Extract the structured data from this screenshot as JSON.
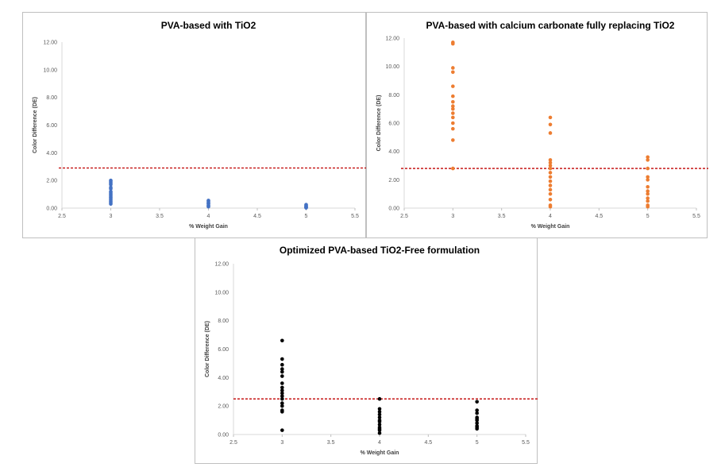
{
  "chart_data": [
    {
      "type": "scatter",
      "title": "PVA-based with TiO2",
      "xlabel": "% Weight Gain",
      "ylabel": "Color Difference (DE)",
      "xlim": [
        2.5,
        5.5
      ],
      "ylim": [
        0,
        12
      ],
      "xticks": [
        "2.5",
        "3",
        "3.5",
        "4",
        "4.5",
        "5",
        "5.5"
      ],
      "yticks": [
        "0.00",
        "2.00",
        "4.00",
        "6.00",
        "8.00",
        "10.00",
        "12.00"
      ],
      "marker_color": "#4472c4",
      "reference_line": {
        "y": 2.9,
        "color": "#c00000",
        "style": "dashed"
      },
      "series": [
        {
          "x": [
            3,
            3,
            3,
            3,
            3,
            3,
            3,
            3,
            3,
            3,
            3,
            3,
            3,
            3,
            3,
            3,
            4,
            4,
            4,
            4,
            4,
            4,
            4,
            4,
            5,
            5,
            5,
            5,
            5,
            5,
            5
          ],
          "y": [
            0.3,
            0.4,
            0.5,
            0.6,
            0.7,
            0.8,
            0.9,
            1.0,
            1.1,
            1.2,
            1.4,
            1.5,
            1.7,
            1.8,
            1.9,
            2.0,
            0.1,
            0.15,
            0.2,
            0.3,
            0.35,
            0.4,
            0.5,
            0.55,
            0.02,
            0.05,
            0.08,
            0.1,
            0.15,
            0.2,
            0.25
          ]
        }
      ]
    },
    {
      "type": "scatter",
      "title": "PVA-based with calcium carbonate fully replacing TiO2",
      "xlabel": "% Weight Gain",
      "ylabel": "Color Difference (DE)",
      "xlim": [
        2.5,
        5.5
      ],
      "ylim": [
        0,
        12
      ],
      "xticks": [
        "2.5",
        "3",
        "3.5",
        "4",
        "4.5",
        "5",
        "5.5"
      ],
      "yticks": [
        "0.00",
        "2.00",
        "4.00",
        "6.00",
        "8.00",
        "10.00",
        "12.00"
      ],
      "marker_color": "#ed7d31",
      "reference_line": {
        "y": 2.8,
        "color": "#c00000",
        "style": "dashed"
      },
      "series": [
        {
          "x": [
            3,
            3,
            3,
            3,
            3,
            3,
            3,
            3,
            3,
            3,
            3,
            3,
            3,
            3,
            3,
            4,
            4,
            4,
            4,
            4,
            4,
            4,
            4,
            4,
            4,
            4,
            4,
            4,
            4,
            4,
            4,
            5,
            5,
            5,
            5,
            5,
            5,
            5,
            5,
            5,
            5,
            5,
            5
          ],
          "y": [
            11.6,
            11.7,
            9.9,
            9.6,
            8.6,
            7.9,
            7.5,
            7.2,
            7.0,
            6.7,
            6.4,
            6.0,
            5.6,
            4.8,
            2.8,
            6.4,
            5.9,
            5.3,
            3.4,
            3.2,
            3.0,
            2.8,
            2.5,
            2.2,
            1.9,
            1.6,
            1.3,
            1.0,
            0.6,
            0.2,
            0.1,
            3.6,
            3.4,
            2.8,
            2.2,
            2.0,
            1.5,
            1.2,
            1.0,
            0.7,
            0.5,
            0.2,
            0.1
          ]
        }
      ]
    },
    {
      "type": "scatter",
      "title": "Optimized PVA-based TiO2-Free formulation",
      "xlabel": "% Weight Gain",
      "ylabel": "Color Difference (DE)",
      "xlim": [
        2.5,
        5.5
      ],
      "ylim": [
        0,
        12
      ],
      "xticks": [
        "2.5",
        "3",
        "3.5",
        "4",
        "4.5",
        "5",
        "5.5"
      ],
      "yticks": [
        "0.00",
        "2.00",
        "4.00",
        "6.00",
        "8.00",
        "10.00",
        "12.00"
      ],
      "marker_color": "#000000",
      "reference_line": {
        "y": 2.5,
        "color": "#c00000",
        "style": "dashed"
      },
      "series": [
        {
          "x": [
            3,
            3,
            3,
            3,
            3,
            3,
            3,
            3,
            3,
            3,
            3,
            3,
            3,
            3,
            3,
            3,
            3,
            4,
            4,
            4,
            4,
            4,
            4,
            4,
            4,
            4,
            4,
            4,
            4,
            5,
            5,
            5,
            5,
            5,
            5,
            5,
            5,
            5,
            5
          ],
          "y": [
            6.6,
            5.3,
            4.9,
            4.6,
            4.4,
            4.1,
            3.6,
            3.3,
            3.1,
            2.9,
            2.7,
            2.5,
            2.2,
            2.0,
            1.7,
            1.6,
            0.3,
            2.5,
            1.8,
            1.6,
            1.4,
            1.2,
            1.0,
            0.9,
            0.7,
            0.5,
            0.4,
            0.3,
            0.1,
            2.3,
            1.7,
            1.5,
            1.2,
            1.1,
            1.0,
            0.8,
            0.6,
            0.5,
            0.4
          ]
        }
      ]
    }
  ]
}
